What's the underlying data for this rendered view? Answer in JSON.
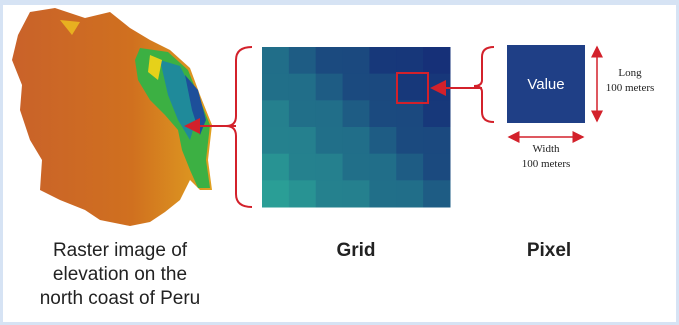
{
  "panels": [
    {
      "caption": [
        "Raster image of",
        "elevation on the",
        "north coast of Peru"
      ]
    },
    {
      "caption": "Grid"
    },
    {
      "caption": "Pixel",
      "cell_value": "Value",
      "height_label": [
        "Long",
        "100 meters"
      ],
      "width_label": [
        "Width",
        "100 meters"
      ]
    }
  ]
}
